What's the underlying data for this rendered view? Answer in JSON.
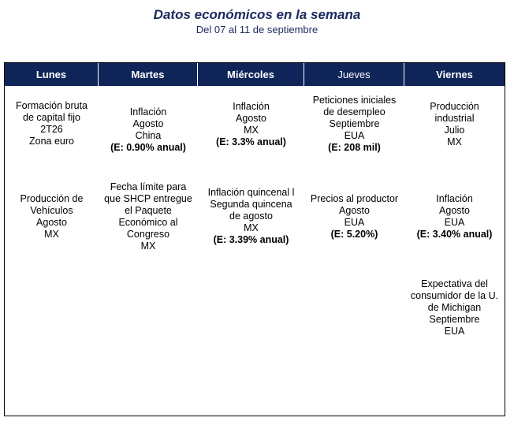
{
  "header": {
    "title": "Datos económicos en la semana",
    "subtitle": "Del 07 al 11 de septiembre"
  },
  "days": [
    {
      "label": "Lunes"
    },
    {
      "label": "Martes"
    },
    {
      "label": "Miércoles"
    },
    {
      "label": "Jueves"
    },
    {
      "label": "Viernes"
    }
  ],
  "events": {
    "lunes": [
      {
        "lines": [
          "Formación bruta",
          "de capital fijo",
          "2T26",
          "Zona euro"
        ]
      },
      {
        "lines": [
          "Producción de",
          "Vehículos",
          "Agosto",
          "MX"
        ]
      }
    ],
    "martes": [
      {
        "lines": [
          "Inflación",
          "Agosto",
          "China"
        ],
        "estimate": "(E: 0.90% anual)"
      },
      {
        "lines": [
          "Fecha límite para",
          "que SHCP entregue",
          "el Paquete",
          "Económico al",
          "Congreso",
          "MX"
        ]
      }
    ],
    "miercoles": [
      {
        "lines": [
          "Inflación",
          "Agosto",
          "MX"
        ],
        "estimate": "(E: 3.3% anual)"
      },
      {
        "lines": [
          "Inflación quincenal l",
          "Segunda quincena",
          "de agosto",
          "MX"
        ],
        "estimate": "(E: 3.39% anual)"
      }
    ],
    "jueves": [
      {
        "lines": [
          "Peticiones iniciales",
          "de desempleo",
          "Septiembre",
          "EUA"
        ],
        "estimate": "(E: 208 mil)"
      },
      {
        "lines": [
          "Precios al productor",
          "Agosto",
          "EUA"
        ],
        "estimate": "(E: 5.20%)"
      }
    ],
    "viernes": [
      {
        "lines": [
          "Producción",
          "industrial",
          "Julio",
          "MX"
        ]
      },
      {
        "lines": [
          "Inflación",
          "Agosto",
          "EUA"
        ],
        "estimate": "(E: 3.40% anual)"
      },
      {
        "lines": [
          "Expectativa del",
          "consumidor de la U.",
          "de Michigan",
          "Septiembre",
          "EUA"
        ]
      }
    ]
  },
  "colors": {
    "header_bg": "#0f2459",
    "title_color": "#1b2a5e"
  }
}
